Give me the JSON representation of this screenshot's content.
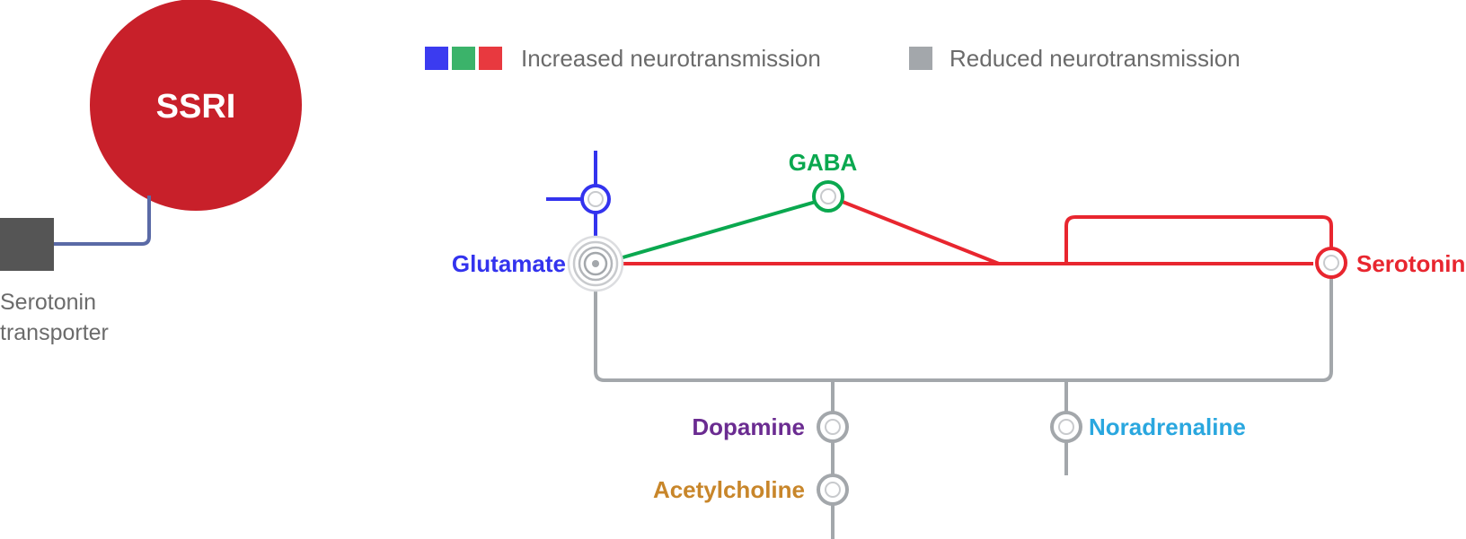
{
  "drug": {
    "label": "SSRI"
  },
  "transporter": {
    "label_line1": "Serotonin",
    "label_line2": "transporter"
  },
  "legend": {
    "increased": "Increased neurotransmission",
    "reduced": "Reduced neurotransmission"
  },
  "nodes": {
    "glutamate": "Glutamate",
    "gaba": "GABA",
    "serotonin": "Serotonin",
    "dopamine": "Dopamine",
    "acetylcholine": "Acetylcholine",
    "noradrenaline": "Noradrenaline"
  },
  "colors": {
    "ssri_red": "#c8202a",
    "transporter_gray": "#555555",
    "transporter_link": "#5a6aa6",
    "glutamate_blue": "#3333ee",
    "gaba_green": "#0aa84f",
    "serotonin_red": "#e8262f",
    "reduced_gray": "#a3a7ab",
    "dopamine_purple": "#6b2c91",
    "acetylcholine_orange": "#c8862a",
    "noradrenaline_cyan": "#2aa7df",
    "legend_blue": "#3b3bf0",
    "legend_green": "#3bb36a",
    "legend_red": "#e8393f"
  }
}
